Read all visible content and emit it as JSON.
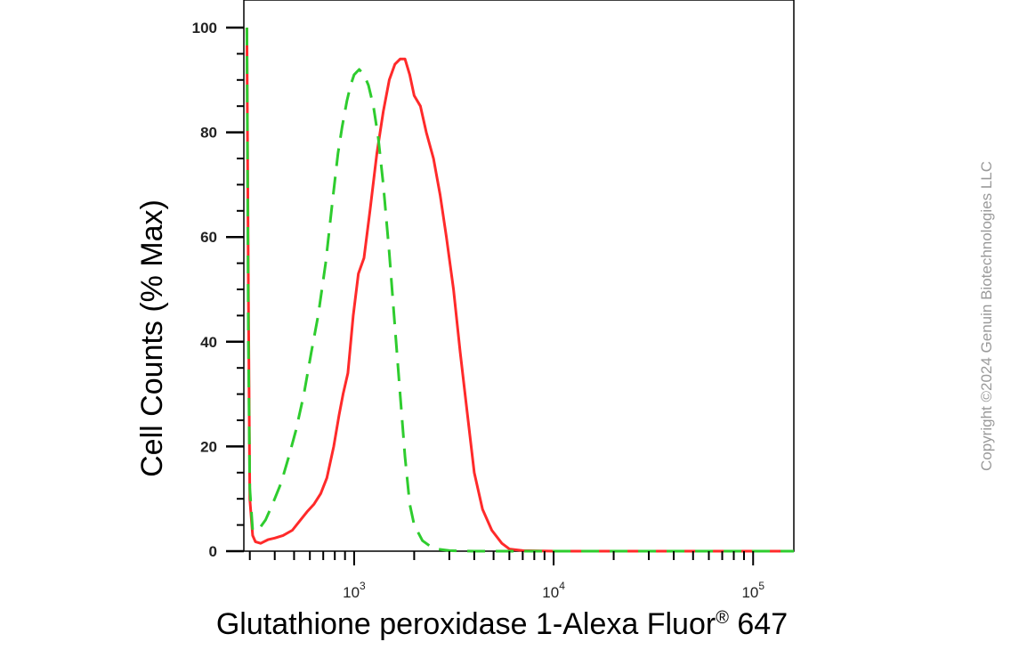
{
  "copyright": "Copyright ©2024 Genuin Biotechnologies LLC",
  "chart_data": {
    "type": "line",
    "title": "",
    "xlabel": "Glutathione peroxidase 1-Alexa Fluor",
    "xlabel_superscript": "®",
    "xlabel_suffix": " 647",
    "ylabel": "Cell Counts (% Max)",
    "xscale": "log",
    "xlim": [
      280,
      160000
    ],
    "ylim": [
      0,
      100
    ],
    "yticks": [
      0,
      20,
      40,
      60,
      80,
      100
    ],
    "xticks": [
      {
        "value": 1000,
        "base": "10",
        "exp": "3"
      },
      {
        "value": 10000,
        "base": "10",
        "exp": "4"
      },
      {
        "value": 100000,
        "base": "10",
        "exp": "5"
      }
    ],
    "grid": false,
    "series": [
      {
        "color": "#ff2a2a",
        "style": "solid",
        "points": [
          [
            290,
            100
          ],
          [
            295,
            50
          ],
          [
            300,
            10
          ],
          [
            310,
            3
          ],
          [
            320,
            1.8
          ],
          [
            340,
            1.5
          ],
          [
            370,
            2.2
          ],
          [
            400,
            2.5
          ],
          [
            440,
            3
          ],
          [
            490,
            4
          ],
          [
            540,
            6
          ],
          [
            580,
            7.5
          ],
          [
            630,
            9
          ],
          [
            680,
            11
          ],
          [
            730,
            14
          ],
          [
            790,
            20
          ],
          [
            840,
            26
          ],
          [
            880,
            30
          ],
          [
            930,
            34
          ],
          [
            990,
            45
          ],
          [
            1050,
            53
          ],
          [
            1120,
            56
          ],
          [
            1200,
            65
          ],
          [
            1300,
            76
          ],
          [
            1400,
            84
          ],
          [
            1500,
            90
          ],
          [
            1600,
            93
          ],
          [
            1700,
            94
          ],
          [
            1800,
            94
          ],
          [
            1900,
            91
          ],
          [
            2000,
            87
          ],
          [
            2150,
            85
          ],
          [
            2300,
            80
          ],
          [
            2500,
            75
          ],
          [
            2700,
            68
          ],
          [
            2900,
            60
          ],
          [
            3150,
            50
          ],
          [
            3400,
            38
          ],
          [
            3700,
            26
          ],
          [
            4000,
            15
          ],
          [
            4400,
            8
          ],
          [
            4900,
            4
          ],
          [
            5500,
            1.5
          ],
          [
            6000,
            0.4
          ],
          [
            7000,
            0.1
          ],
          [
            10000,
            0
          ],
          [
            30000,
            0
          ],
          [
            100000,
            0
          ],
          [
            160000,
            0
          ]
        ]
      },
      {
        "color": "#2ecc2e",
        "style": "dashed",
        "points": [
          [
            290,
            100
          ],
          [
            295,
            40
          ],
          [
            300,
            12
          ],
          [
            310,
            4
          ],
          [
            330,
            4
          ],
          [
            360,
            6
          ],
          [
            390,
            9
          ],
          [
            430,
            13
          ],
          [
            470,
            18
          ],
          [
            510,
            23
          ],
          [
            560,
            30
          ],
          [
            610,
            38
          ],
          [
            660,
            45
          ],
          [
            720,
            55
          ],
          [
            780,
            67
          ],
          [
            830,
            76
          ],
          [
            870,
            81
          ],
          [
            920,
            86
          ],
          [
            960,
            89
          ],
          [
            1000,
            91
          ],
          [
            1060,
            92
          ],
          [
            1120,
            91
          ],
          [
            1180,
            89
          ],
          [
            1250,
            85
          ],
          [
            1320,
            79
          ],
          [
            1400,
            70
          ],
          [
            1500,
            57
          ],
          [
            1600,
            43
          ],
          [
            1700,
            30
          ],
          [
            1800,
            18
          ],
          [
            1900,
            9
          ],
          [
            2000,
            5
          ],
          [
            2200,
            2
          ],
          [
            2500,
            0.5
          ],
          [
            3000,
            0.1
          ],
          [
            4000,
            0
          ],
          [
            10000,
            0
          ],
          [
            100000,
            0
          ],
          [
            160000,
            0
          ]
        ]
      }
    ]
  }
}
